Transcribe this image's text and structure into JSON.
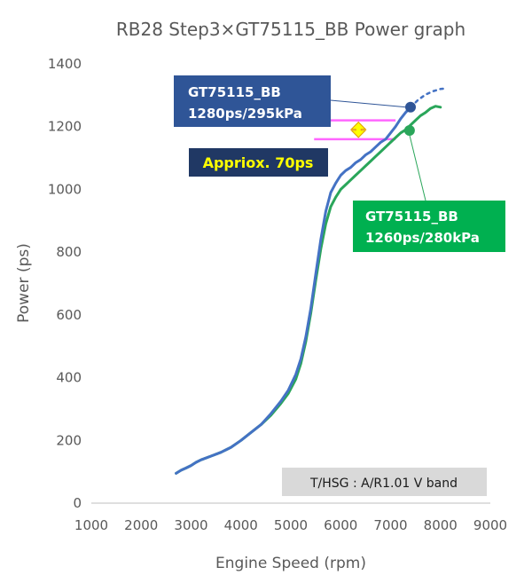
{
  "chart_data": {
    "type": "line",
    "title": "RB28 Step3×GT75115_BB Power graph",
    "xlabel": "Engine Speed (rpm)",
    "ylabel": "Power (ps)",
    "xlim": [
      1000,
      9000
    ],
    "ylim": [
      0,
      1400
    ],
    "xticks": [
      "1000",
      "2000",
      "3000",
      "4000",
      "5000",
      "6000",
      "7000",
      "8000",
      "9000"
    ],
    "yticks": [
      "0",
      "200",
      "400",
      "600",
      "800",
      "1000",
      "1200",
      "1400"
    ],
    "grid": false,
    "series": [
      {
        "name": "GT75115_BB 1280ps/295kPa",
        "color": "#4472c4",
        "x": [
          2700,
          2800,
          2900,
          3000,
          3100,
          3200,
          3400,
          3600,
          3800,
          4000,
          4200,
          4400,
          4600,
          4800,
          4950,
          5100,
          5200,
          5300,
          5400,
          5500,
          5600,
          5700,
          5800,
          5900,
          6000,
          6100,
          6200,
          6300,
          6400,
          6500,
          6600,
          6700,
          6800,
          6900,
          7000,
          7100,
          7200,
          7300,
          7400
        ],
        "y": [
          95,
          105,
          112,
          120,
          130,
          138,
          150,
          162,
          178,
          200,
          225,
          250,
          285,
          325,
          360,
          410,
          460,
          530,
          620,
          730,
          840,
          930,
          990,
          1020,
          1045,
          1060,
          1070,
          1085,
          1095,
          1110,
          1120,
          1135,
          1150,
          1160,
          1180,
          1200,
          1225,
          1245,
          1262
        ]
      },
      {
        "name": "GT75115_BB extrapolated",
        "color": "#4472c4",
        "dashed": true,
        "x": [
          7400,
          7550,
          7700,
          7850,
          8000,
          8100
        ],
        "y": [
          1262,
          1285,
          1302,
          1313,
          1320,
          1322
        ]
      },
      {
        "name": "GT75115_BB 1260ps/280kPa",
        "color": "#2aa65a",
        "x": [
          2700,
          2800,
          2900,
          3000,
          3100,
          3200,
          3400,
          3600,
          3800,
          4000,
          4200,
          4400,
          4600,
          4800,
          4950,
          5100,
          5200,
          5300,
          5400,
          5500,
          5600,
          5700,
          5800,
          5900,
          6000,
          6100,
          6200,
          6300,
          6400,
          6500,
          6600,
          6700,
          6800,
          6900,
          7000,
          7100,
          7200,
          7300,
          7400,
          7500,
          7600,
          7700,
          7800,
          7900,
          8000
        ],
        "y": [
          95,
          105,
          112,
          120,
          130,
          138,
          150,
          162,
          178,
          200,
          225,
          250,
          280,
          318,
          350,
          395,
          445,
          515,
          605,
          710,
          810,
          890,
          945,
          975,
          1000,
          1015,
          1030,
          1045,
          1060,
          1075,
          1090,
          1105,
          1120,
          1135,
          1150,
          1165,
          1180,
          1190,
          1205,
          1220,
          1235,
          1245,
          1258,
          1265,
          1262
        ]
      }
    ],
    "markers": [
      {
        "series": 0,
        "x": 7400,
        "y": 1262,
        "color": "#2f5597"
      },
      {
        "series": 2,
        "x": 7380,
        "y": 1188,
        "color": "#2aa65a"
      }
    ],
    "annotations": {
      "blue_callout": {
        "line1": "GT75115_BB",
        "line2": "1280ps/295kPa",
        "bg": "#2f5597"
      },
      "green_callout": {
        "line1": "GT75115_BB",
        "line2": "1260ps/280kPa",
        "bg": "#00b050"
      },
      "difference": {
        "text": "Appriox. 70ps",
        "bg": "#203864",
        "upper": 1220,
        "lower": 1160,
        "x_from": 6000,
        "x_to": 7100,
        "band_color": "#ff66ff",
        "arrow_color": "#ffff00"
      },
      "note": {
        "text": "T/HSG : A/R1.01 V band",
        "bg": "#d9d9d9"
      }
    }
  }
}
